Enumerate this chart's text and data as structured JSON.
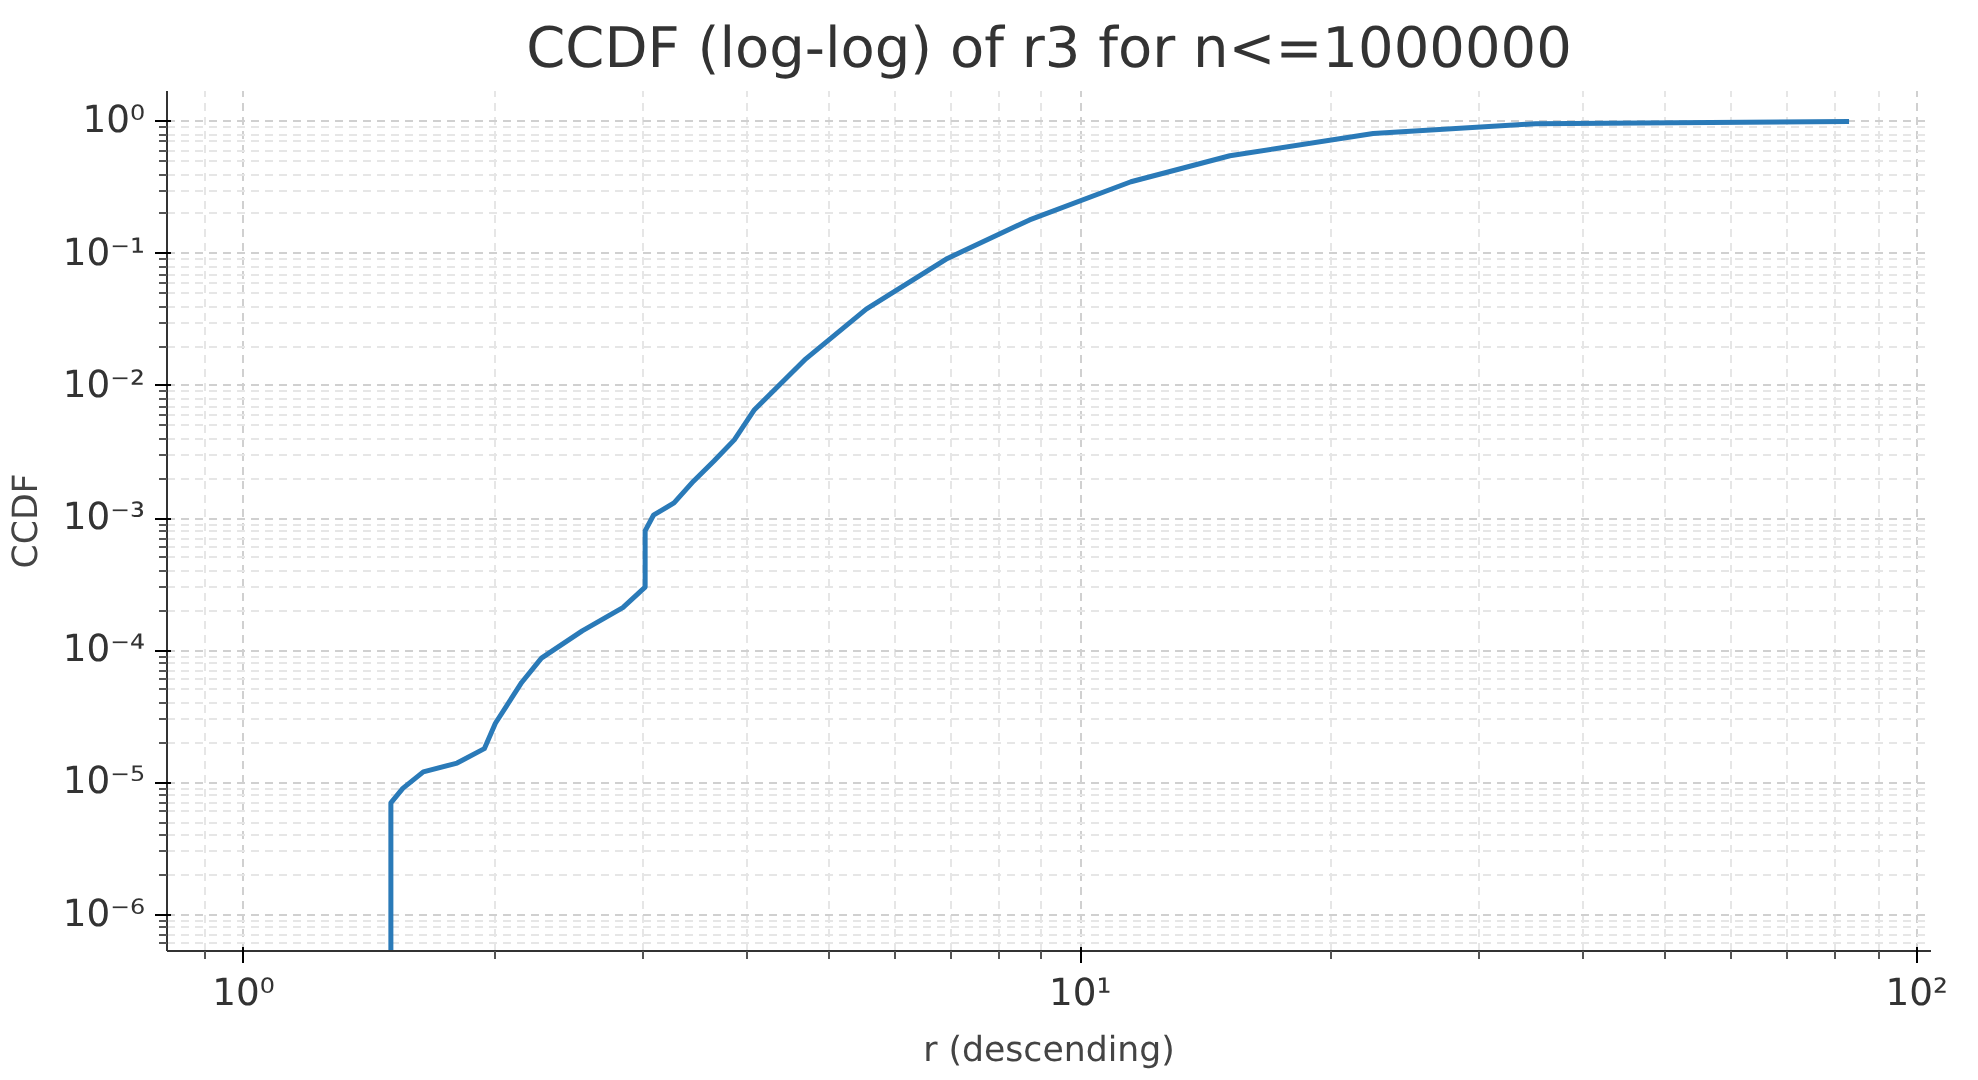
{
  "chart_data": {
    "type": "line",
    "title": "CCDF (log-log) of r3 for n<=1000000",
    "xlabel": "r (descending)",
    "ylabel": "CCDF",
    "log": "xy",
    "grid": true,
    "xlim": [
      0.81,
      104
    ],
    "ylim": [
      5.3e-07,
      1.7
    ],
    "xticks": [
      {
        "value": 1,
        "label": "10⁰"
      },
      {
        "value": 10,
        "label": "10¹"
      },
      {
        "value": 100,
        "label": "10²"
      }
    ],
    "yticks": [
      {
        "value": 1e-06,
        "label": "10⁻⁶"
      },
      {
        "value": 1e-05,
        "label": "10⁻⁵"
      },
      {
        "value": 0.0001,
        "label": "10⁻⁴"
      },
      {
        "value": 0.001,
        "label": "10⁻³"
      },
      {
        "value": 0.01,
        "label": "10⁻²"
      },
      {
        "value": 0.1,
        "label": "10⁻¹"
      },
      {
        "value": 1,
        "label": "10⁰"
      }
    ],
    "series": [
      {
        "color": "#2a7ab8",
        "x": [
          1.5,
          1.5,
          1.55,
          1.64,
          1.8,
          1.94,
          2.0,
          2.15,
          2.27,
          2.54,
          2.84,
          3.02,
          3.02,
          3.09,
          3.27,
          3.45,
          3.65,
          3.86,
          4.08,
          4.7,
          5.55,
          6.94,
          8.7,
          11.5,
          15.1,
          22.4,
          35,
          83
        ],
        "values": [
          5.3e-07,
          7e-06,
          9e-06,
          1.2e-05,
          1.4e-05,
          1.8e-05,
          2.8e-05,
          5.7e-05,
          8.7e-05,
          0.00014,
          0.00021,
          0.0003,
          0.0008,
          0.00105,
          0.0013,
          0.0019,
          0.0027,
          0.0039,
          0.0066,
          0.016,
          0.038,
          0.092,
          0.18,
          0.35,
          0.55,
          0.81,
          0.96,
          1.0
        ]
      }
    ]
  }
}
